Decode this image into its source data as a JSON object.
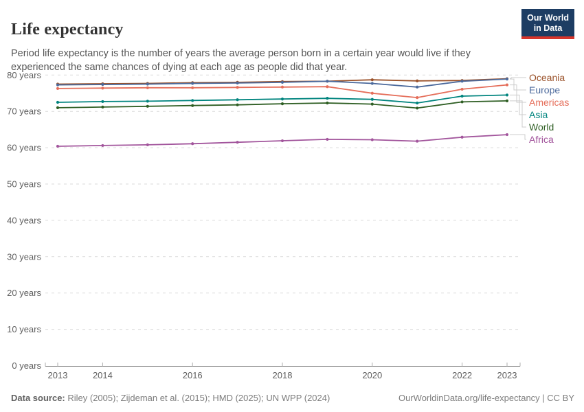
{
  "header": {
    "title": "Life expectancy",
    "subtitle": "Period life expectancy is the number of years the average person born in a certain year would live if they experienced the same chances of dying at each age as people did that year.",
    "logo": {
      "line1": "Our World",
      "line2": "in Data",
      "bg_color": "#1d3d63",
      "accent_color": "#d7352b"
    }
  },
  "chart_data": {
    "type": "line",
    "title": "Life expectancy",
    "x": [
      2013,
      2014,
      2015,
      2016,
      2017,
      2018,
      2019,
      2020,
      2021,
      2022,
      2023
    ],
    "x_tick_labels": [
      2013,
      2014,
      2016,
      2018,
      2020,
      2022,
      2023
    ],
    "ylim": [
      0,
      80
    ],
    "y_ticks": [
      0,
      10,
      20,
      30,
      40,
      50,
      60,
      70,
      80
    ],
    "y_tick_suffix": " years",
    "grid": "horizontal-dashed",
    "legend_position": "right",
    "series": [
      {
        "name": "Oceania",
        "color": "#9a5129",
        "values": [
          77.5,
          77.6,
          77.7,
          77.9,
          78.0,
          78.2,
          78.3,
          78.7,
          78.4,
          78.5,
          79.0
        ]
      },
      {
        "name": "Europe",
        "color": "#4c6a9c",
        "values": [
          77.3,
          77.4,
          77.5,
          77.7,
          77.8,
          78.0,
          78.3,
          77.7,
          76.7,
          78.3,
          78.9
        ]
      },
      {
        "name": "Americas",
        "color": "#e56e5a",
        "values": [
          76.3,
          76.4,
          76.5,
          76.5,
          76.6,
          76.7,
          76.8,
          75.0,
          73.8,
          76.1,
          77.3
        ]
      },
      {
        "name": "Asia",
        "color": "#00847e",
        "values": [
          72.5,
          72.7,
          72.8,
          73.0,
          73.2,
          73.4,
          73.6,
          73.3,
          72.3,
          74.2,
          74.5
        ]
      },
      {
        "name": "World",
        "color": "#2e5e23",
        "values": [
          71.0,
          71.2,
          71.4,
          71.6,
          71.8,
          72.1,
          72.3,
          72.0,
          70.9,
          72.6,
          72.9
        ]
      },
      {
        "name": "Africa",
        "color": "#a2559c",
        "values": [
          60.4,
          60.6,
          60.8,
          61.1,
          61.5,
          61.9,
          62.3,
          62.2,
          61.8,
          62.9,
          63.6
        ]
      }
    ]
  },
  "footer": {
    "source_label": "Data source:",
    "source_text": " Riley (2005); Zijdeman et al. (2015); HMD (2025); UN WPP (2024)",
    "credit": "OurWorldinData.org/life-expectancy | CC BY"
  }
}
